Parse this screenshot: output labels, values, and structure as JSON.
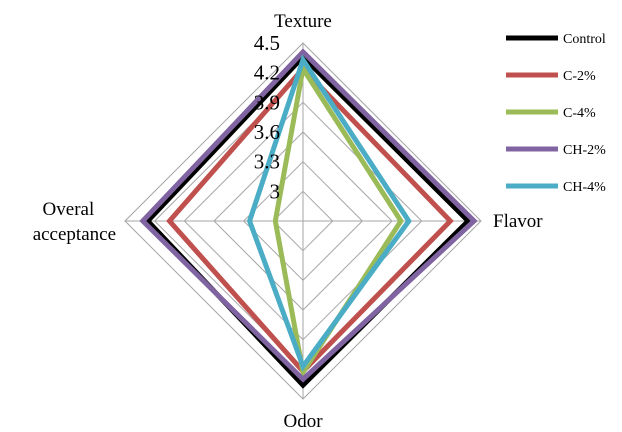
{
  "chart_data": {
    "type": "radar",
    "axes": [
      "Texture",
      "Flavor",
      "Odor",
      "Overal acceptance"
    ],
    "rlim": [
      2.7,
      4.5
    ],
    "ticks": [
      3,
      3.3,
      3.6,
      3.9,
      4.2,
      4.5
    ],
    "tick_labels": [
      "3",
      "3.3",
      "3.6",
      "3.9",
      "4.2",
      "4.5"
    ],
    "grid": true,
    "legend_position": "right",
    "series": [
      {
        "name": "Control",
        "color": "#000000",
        "values": [
          4.36,
          4.37,
          4.36,
          4.27
        ]
      },
      {
        "name": "C-2%",
        "color": "#c0504d",
        "values": [
          4.24,
          4.19,
          4.22,
          4.05
        ]
      },
      {
        "name": "C-4%",
        "color": "#9bbb59",
        "values": [
          4.24,
          3.69,
          4.23,
          2.98
        ]
      },
      {
        "name": "CH-2%",
        "color": "#8064a2",
        "values": [
          4.41,
          4.43,
          4.3,
          4.32
        ]
      },
      {
        "name": "CH-4%",
        "color": "#4bacc6",
        "values": [
          4.33,
          3.77,
          4.17,
          3.24
        ]
      }
    ]
  }
}
